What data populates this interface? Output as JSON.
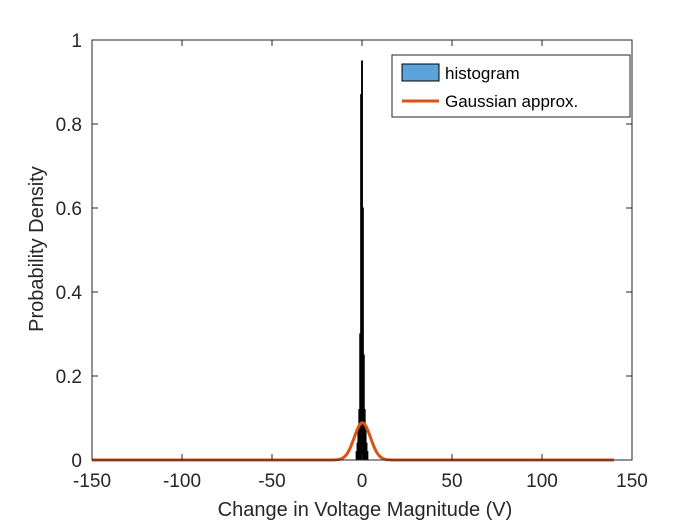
{
  "chart_data": {
    "type": "bar",
    "title": "",
    "xlabel": "Change in Voltage Magnitude (V)",
    "ylabel": "Probability Density",
    "xlim": [
      -150,
      150
    ],
    "ylim": [
      0,
      1
    ],
    "xticks": [
      -150,
      -100,
      -50,
      0,
      50,
      100,
      150
    ],
    "xtick_labels": [
      "-150",
      "-100",
      "-50",
      "0",
      "50",
      "100",
      "150"
    ],
    "yticks": [
      0,
      0.2,
      0.4,
      0.6,
      0.8,
      1
    ],
    "ytick_labels": [
      "0",
      "0.2",
      "0.4",
      "0.6",
      "0.8",
      "1"
    ],
    "grid": false,
    "legend_position": "top-right",
    "series": [
      {
        "name": "histogram",
        "type": "bar",
        "color": "#5ba3d9",
        "edge_color": "#000000",
        "x": [
          -3.0,
          -2.5,
          -2.0,
          -1.5,
          -1.0,
          -0.5,
          0.0,
          0.5,
          1.0,
          1.5,
          2.0,
          2.5,
          3.0
        ],
        "values": [
          0.02,
          0.04,
          0.07,
          0.12,
          0.3,
          0.87,
          0.95,
          0.6,
          0.25,
          0.12,
          0.07,
          0.04,
          0.02
        ],
        "bin_width": 0.5
      },
      {
        "name": "Gaussian approx.",
        "type": "line",
        "color": "#d95319",
        "mean": 0.2,
        "std": 4.5,
        "x_range": [
          -150,
          140
        ]
      }
    ]
  }
}
